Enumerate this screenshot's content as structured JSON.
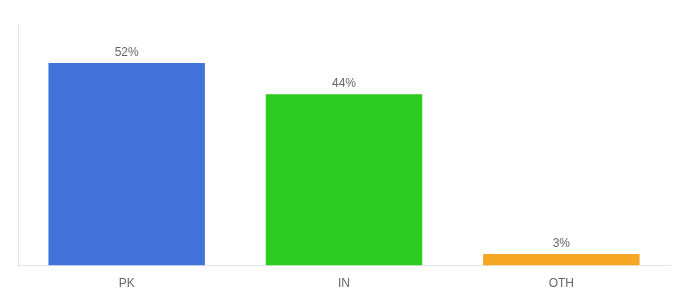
{
  "chart_data": {
    "type": "bar",
    "categories": [
      "PK",
      "IN",
      "OTH"
    ],
    "values": [
      52,
      44,
      3
    ],
    "value_labels": [
      "52%",
      "44%",
      "3%"
    ],
    "colors": [
      "#4472db",
      "#2ecc20",
      "#f5a623"
    ],
    "ylim": [
      0,
      62
    ],
    "grid": false,
    "data_labels": true,
    "tick_labels": "x"
  }
}
